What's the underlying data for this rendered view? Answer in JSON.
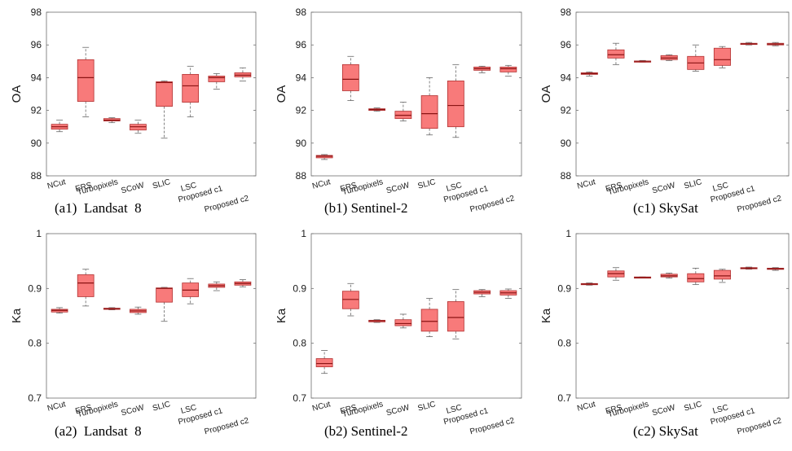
{
  "chart_data": [
    {
      "type": "box",
      "caption": "(a1)  Landsat  8",
      "ylabel": "OA",
      "ylim": [
        88,
        98
      ],
      "yticks": [
        88,
        90,
        92,
        94,
        96,
        98
      ],
      "categories": [
        "NCut",
        "ERS",
        "Turbopixels",
        "SCoW",
        "SLIC",
        "LSC",
        "Proposed c1",
        "Proposed c2"
      ],
      "boxes": [
        {
          "min": 90.7,
          "q1": 90.85,
          "median": 91.0,
          "q3": 91.15,
          "max": 91.4
        },
        {
          "min": 91.6,
          "q1": 92.55,
          "median": 94.0,
          "q3": 95.1,
          "max": 95.85
        },
        {
          "min": 91.25,
          "q1": 91.35,
          "median": 91.4,
          "q3": 91.5,
          "max": 91.55
        },
        {
          "min": 90.6,
          "q1": 90.8,
          "median": 91.0,
          "q3": 91.15,
          "max": 91.4
        },
        {
          "min": 90.3,
          "q1": 92.25,
          "median": 93.7,
          "q3": 93.75,
          "max": 93.8
        },
        {
          "min": 91.6,
          "q1": 92.5,
          "median": 93.5,
          "q3": 94.2,
          "max": 94.7
        },
        {
          "min": 93.3,
          "q1": 93.75,
          "median": 94.0,
          "q3": 94.1,
          "max": 94.25
        },
        {
          "min": 93.8,
          "q1": 94.05,
          "median": 94.15,
          "q3": 94.3,
          "max": 94.6
        }
      ]
    },
    {
      "type": "box",
      "caption": "(b1) Sentinel-2",
      "ylabel": "OA",
      "ylim": [
        88,
        98
      ],
      "yticks": [
        88,
        90,
        92,
        94,
        96,
        98
      ],
      "categories": [
        "NCut",
        "ERS",
        "Turbopixels",
        "SCoW",
        "SLIC",
        "LSC",
        "Proposed c1",
        "Proposed c2"
      ],
      "boxes": [
        {
          "min": 89.0,
          "q1": 89.1,
          "median": 89.2,
          "q3": 89.25,
          "max": 89.3
        },
        {
          "min": 92.6,
          "q1": 93.2,
          "median": 93.9,
          "q3": 94.8,
          "max": 95.3
        },
        {
          "min": 91.95,
          "q1": 92.0,
          "median": 92.05,
          "q3": 92.1,
          "max": 92.15
        },
        {
          "min": 91.35,
          "q1": 91.5,
          "median": 91.7,
          "q3": 91.95,
          "max": 92.5
        },
        {
          "min": 90.5,
          "q1": 90.9,
          "median": 91.8,
          "q3": 92.9,
          "max": 94.0
        },
        {
          "min": 90.35,
          "q1": 91.0,
          "median": 92.3,
          "q3": 93.8,
          "max": 94.8
        },
        {
          "min": 94.3,
          "q1": 94.45,
          "median": 94.55,
          "q3": 94.65,
          "max": 94.7
        },
        {
          "min": 94.1,
          "q1": 94.35,
          "median": 94.55,
          "q3": 94.65,
          "max": 94.75
        }
      ]
    },
    {
      "type": "box",
      "caption": "(c1) SkySat",
      "ylabel": "OA",
      "ylim": [
        88,
        98
      ],
      "yticks": [
        88,
        90,
        92,
        94,
        96,
        98
      ],
      "categories": [
        "NCut",
        "ERS",
        "Turbopixels",
        "SCoW",
        "SLIC",
        "LSC",
        "Proposed c1",
        "Proposed c2"
      ],
      "boxes": [
        {
          "min": 94.1,
          "q1": 94.2,
          "median": 94.25,
          "q3": 94.3,
          "max": 94.35
        },
        {
          "min": 94.8,
          "q1": 95.2,
          "median": 95.4,
          "q3": 95.7,
          "max": 96.1
        },
        {
          "min": 94.95,
          "q1": 94.98,
          "median": 95.0,
          "q3": 95.02,
          "max": 95.05
        },
        {
          "min": 95.05,
          "q1": 95.1,
          "median": 95.2,
          "q3": 95.35,
          "max": 95.4
        },
        {
          "min": 94.4,
          "q1": 94.5,
          "median": 94.9,
          "q3": 95.3,
          "max": 96.0
        },
        {
          "min": 94.6,
          "q1": 94.75,
          "median": 95.1,
          "q3": 95.8,
          "max": 95.9
        },
        {
          "min": 96.0,
          "q1": 96.03,
          "median": 96.07,
          "q3": 96.1,
          "max": 96.15
        },
        {
          "min": 95.95,
          "q1": 96.0,
          "median": 96.05,
          "q3": 96.1,
          "max": 96.15
        }
      ]
    },
    {
      "type": "box",
      "caption": "(a2)  Landsat  8",
      "ylabel": "Ka",
      "ylim": [
        0.7,
        1.0
      ],
      "yticks": [
        0.7,
        0.8,
        0.9,
        1
      ],
      "categories": [
        "NCut",
        "ERS",
        "Turbopixels",
        "SCoW",
        "SLIC",
        "LSC",
        "Proposed c1",
        "Proposed c2"
      ],
      "boxes": [
        {
          "min": 0.855,
          "q1": 0.857,
          "median": 0.86,
          "q3": 0.862,
          "max": 0.865
        },
        {
          "min": 0.868,
          "q1": 0.885,
          "median": 0.91,
          "q3": 0.925,
          "max": 0.935
        },
        {
          "min": 0.861,
          "q1": 0.862,
          "median": 0.863,
          "q3": 0.864,
          "max": 0.865
        },
        {
          "min": 0.853,
          "q1": 0.856,
          "median": 0.859,
          "q3": 0.862,
          "max": 0.866
        },
        {
          "min": 0.84,
          "q1": 0.875,
          "median": 0.9,
          "q3": 0.901,
          "max": 0.902
        },
        {
          "min": 0.872,
          "q1": 0.885,
          "median": 0.897,
          "q3": 0.91,
          "max": 0.918
        },
        {
          "min": 0.896,
          "q1": 0.902,
          "median": 0.905,
          "q3": 0.908,
          "max": 0.912
        },
        {
          "min": 0.903,
          "q1": 0.906,
          "median": 0.909,
          "q3": 0.912,
          "max": 0.916
        }
      ]
    },
    {
      "type": "box",
      "caption": "(b2) Sentinel-2",
      "ylabel": "Ka",
      "ylim": [
        0.7,
        1.0
      ],
      "yticks": [
        0.7,
        0.8,
        0.9,
        1
      ],
      "categories": [
        "NCut",
        "ERS",
        "Turbopixels",
        "SCoW",
        "SLIC",
        "LSC",
        "Proposed c1",
        "Proposed c2"
      ],
      "boxes": [
        {
          "min": 0.745,
          "q1": 0.757,
          "median": 0.763,
          "q3": 0.772,
          "max": 0.787
        },
        {
          "min": 0.85,
          "q1": 0.863,
          "median": 0.88,
          "q3": 0.895,
          "max": 0.909
        },
        {
          "min": 0.838,
          "q1": 0.839,
          "median": 0.841,
          "q3": 0.842,
          "max": 0.843
        },
        {
          "min": 0.828,
          "q1": 0.832,
          "median": 0.836,
          "q3": 0.843,
          "max": 0.853
        },
        {
          "min": 0.812,
          "q1": 0.822,
          "median": 0.84,
          "q3": 0.862,
          "max": 0.882
        },
        {
          "min": 0.808,
          "q1": 0.822,
          "median": 0.847,
          "q3": 0.876,
          "max": 0.898
        },
        {
          "min": 0.885,
          "q1": 0.89,
          "median": 0.893,
          "q3": 0.896,
          "max": 0.898
        },
        {
          "min": 0.882,
          "q1": 0.888,
          "median": 0.892,
          "q3": 0.896,
          "max": 0.899
        }
      ]
    },
    {
      "type": "box",
      "caption": "(c2) SkySat",
      "ylabel": "Ka",
      "ylim": [
        0.7,
        1.0
      ],
      "yticks": [
        0.7,
        0.8,
        0.9,
        1
      ],
      "categories": [
        "NCut",
        "ERS",
        "Turbopixels",
        "SCoW",
        "SLIC",
        "LSC",
        "Proposed c1",
        "Proposed c2"
      ],
      "boxes": [
        {
          "min": 0.906,
          "q1": 0.907,
          "median": 0.908,
          "q3": 0.909,
          "max": 0.91
        },
        {
          "min": 0.915,
          "q1": 0.921,
          "median": 0.927,
          "q3": 0.932,
          "max": 0.938
        },
        {
          "min": 0.919,
          "q1": 0.92,
          "median": 0.92,
          "q3": 0.921,
          "max": 0.921
        },
        {
          "min": 0.919,
          "q1": 0.921,
          "median": 0.923,
          "q3": 0.926,
          "max": 0.928
        },
        {
          "min": 0.907,
          "q1": 0.912,
          "median": 0.918,
          "q3": 0.927,
          "max": 0.937
        },
        {
          "min": 0.911,
          "q1": 0.917,
          "median": 0.923,
          "q3": 0.933,
          "max": 0.935
        },
        {
          "min": 0.935,
          "q1": 0.936,
          "median": 0.937,
          "q3": 0.938,
          "max": 0.939
        },
        {
          "min": 0.933,
          "q1": 0.935,
          "median": 0.936,
          "q3": 0.937,
          "max": 0.938
        }
      ]
    }
  ],
  "style": {
    "box_fill": "#f87a7a",
    "box_stroke": "#b23030",
    "median_color": "#8b1414",
    "whisker_color": "#666666",
    "axis_color": "#6e6e6e",
    "text_color": "#1a1a1a"
  }
}
